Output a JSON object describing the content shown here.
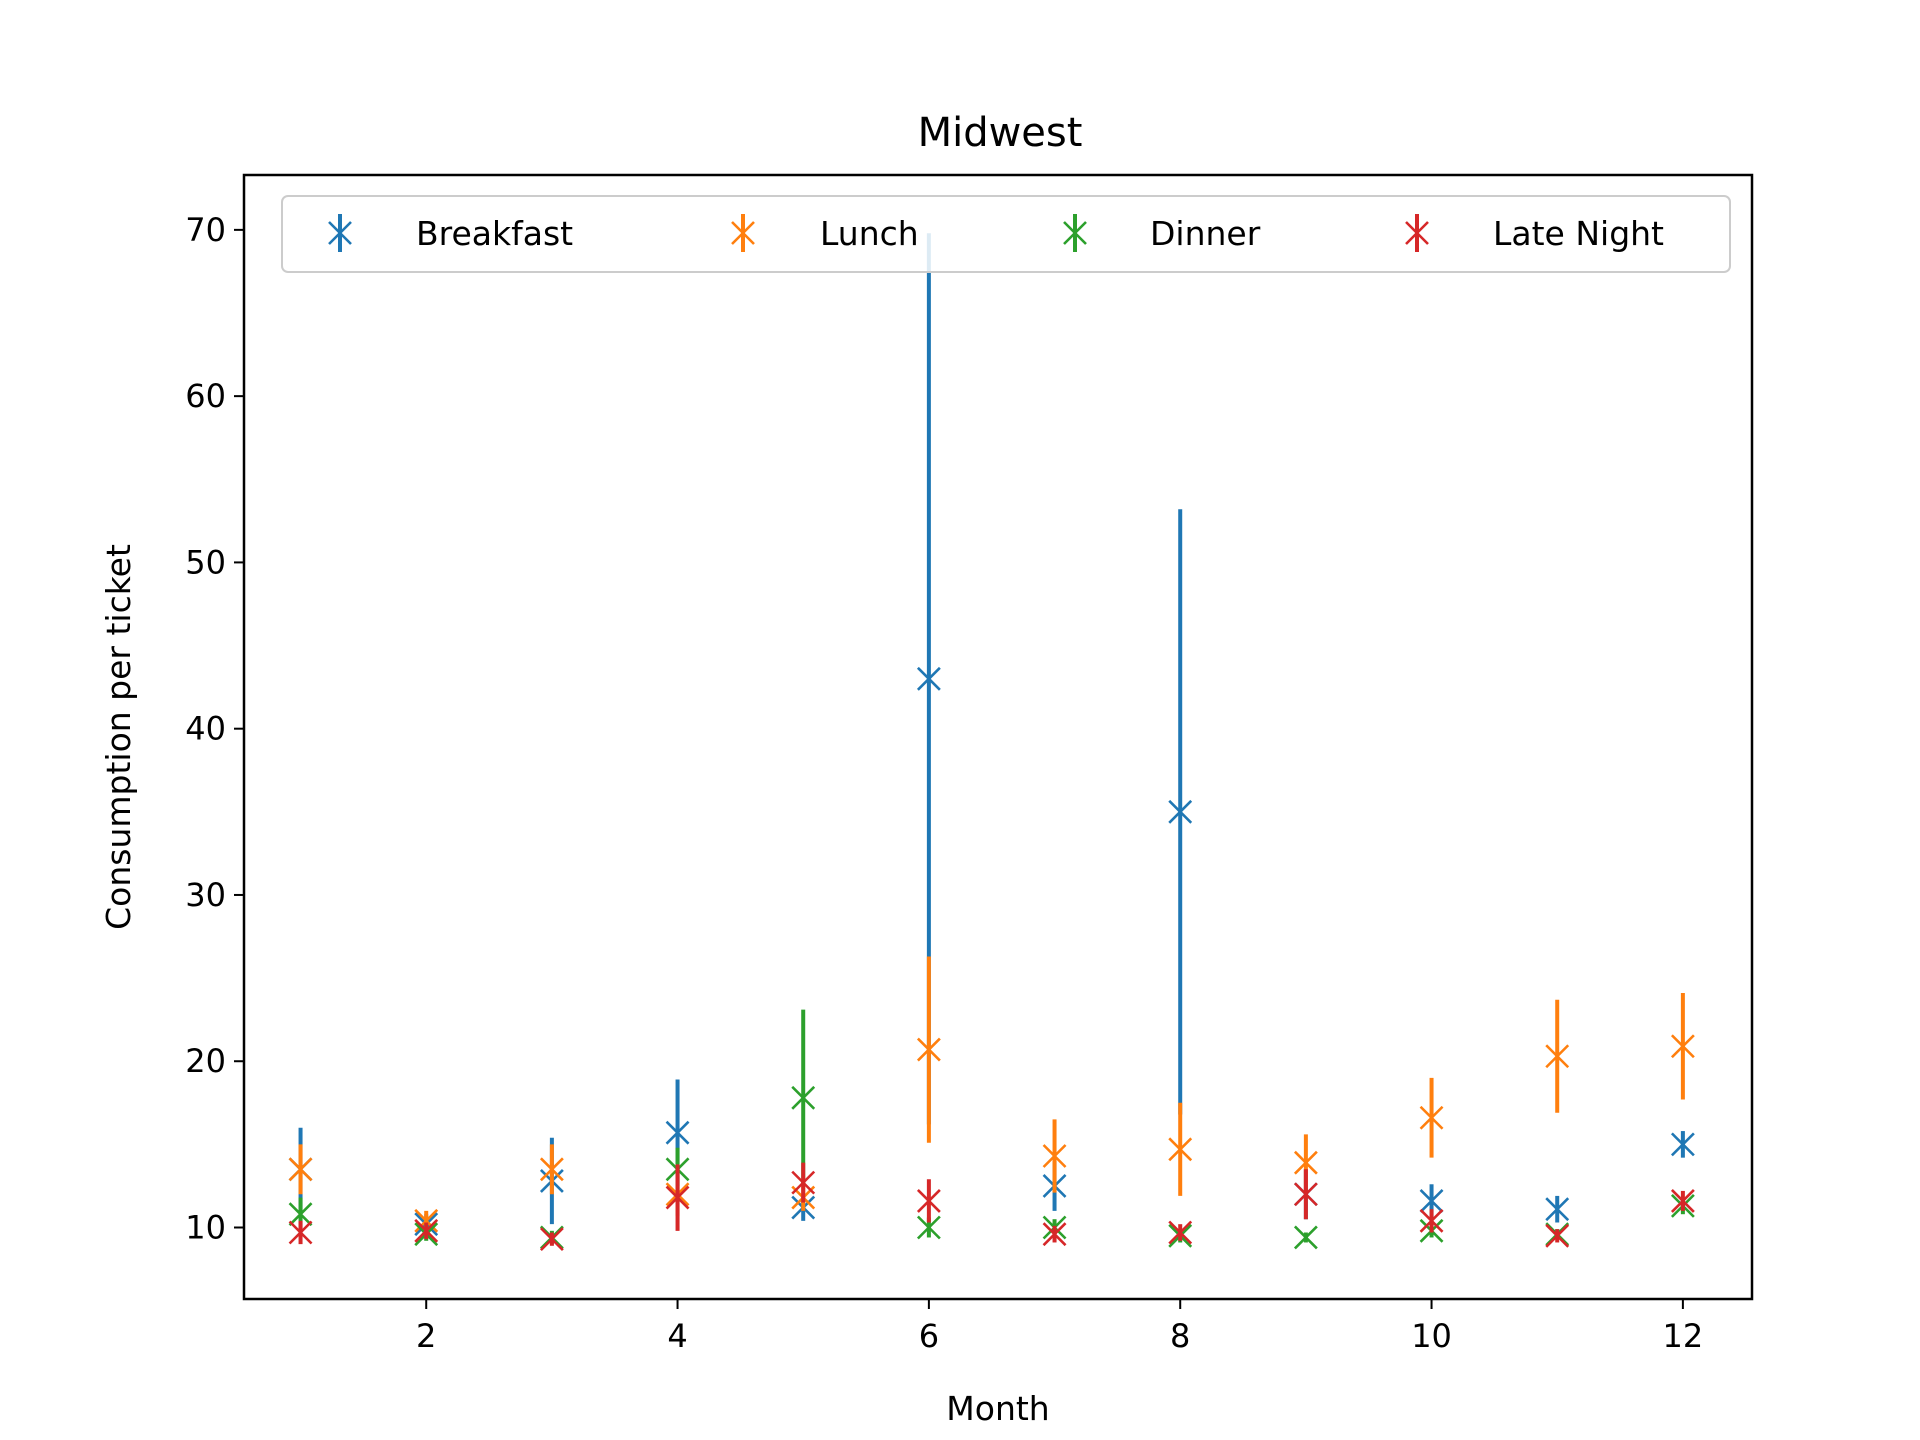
{
  "chart_data": {
    "type": "scatter",
    "title": "Midwest",
    "xlabel": "Month",
    "ylabel": "Consumption per ticket",
    "xlim": [
      0.55,
      12.55
    ],
    "ylim": [
      5.7,
      73.3
    ],
    "xticks": [
      2,
      4,
      6,
      8,
      10,
      12
    ],
    "yticks": [
      10,
      20,
      30,
      40,
      50,
      60,
      70
    ],
    "grid": false,
    "legend_position": "top",
    "marker": "x",
    "x": [
      1,
      2,
      3,
      4,
      5,
      6,
      7,
      8,
      9,
      10,
      11,
      12
    ],
    "series": [
      {
        "name": "Breakfast",
        "color": "#1f77b4",
        "values": [
          13.5,
          10.2,
          12.8,
          15.7,
          11.2,
          43.0,
          12.5,
          35.0,
          12.0,
          11.6,
          11.1,
          15.0
        ],
        "errors": [
          2.5,
          0.6,
          2.6,
          3.2,
          0.8,
          26.8,
          1.5,
          18.2,
          1.5,
          1.0,
          0.8,
          0.8
        ]
      },
      {
        "name": "Lunch",
        "color": "#ff7f0e",
        "values": [
          13.5,
          10.4,
          13.5,
          12.0,
          11.8,
          20.7,
          14.3,
          14.7,
          13.9,
          16.6,
          20.3,
          20.9
        ],
        "errors": [
          1.5,
          0.6,
          1.5,
          1.3,
          0.8,
          5.6,
          2.2,
          2.8,
          1.7,
          2.4,
          3.4,
          3.2
        ]
      },
      {
        "name": "Dinner",
        "color": "#2ca02c",
        "values": [
          10.8,
          9.6,
          9.4,
          13.5,
          17.8,
          10.0,
          10.0,
          9.5,
          9.4,
          9.8,
          9.6,
          11.3
        ],
        "errors": [
          1.0,
          0.4,
          0.4,
          1.3,
          5.3,
          0.6,
          0.5,
          0.4,
          0.3,
          0.4,
          0.3,
          0.5
        ]
      },
      {
        "name": "Late Night",
        "color": "#d62728",
        "values": [
          9.7,
          9.8,
          9.3,
          11.8,
          12.7,
          11.6,
          9.6,
          9.7,
          12.0,
          10.4,
          9.5,
          11.6
        ],
        "errors": [
          0.7,
          0.5,
          0.4,
          2.0,
          1.2,
          1.3,
          0.5,
          0.5,
          1.5,
          0.7,
          0.4,
          0.6
        ]
      }
    ]
  }
}
